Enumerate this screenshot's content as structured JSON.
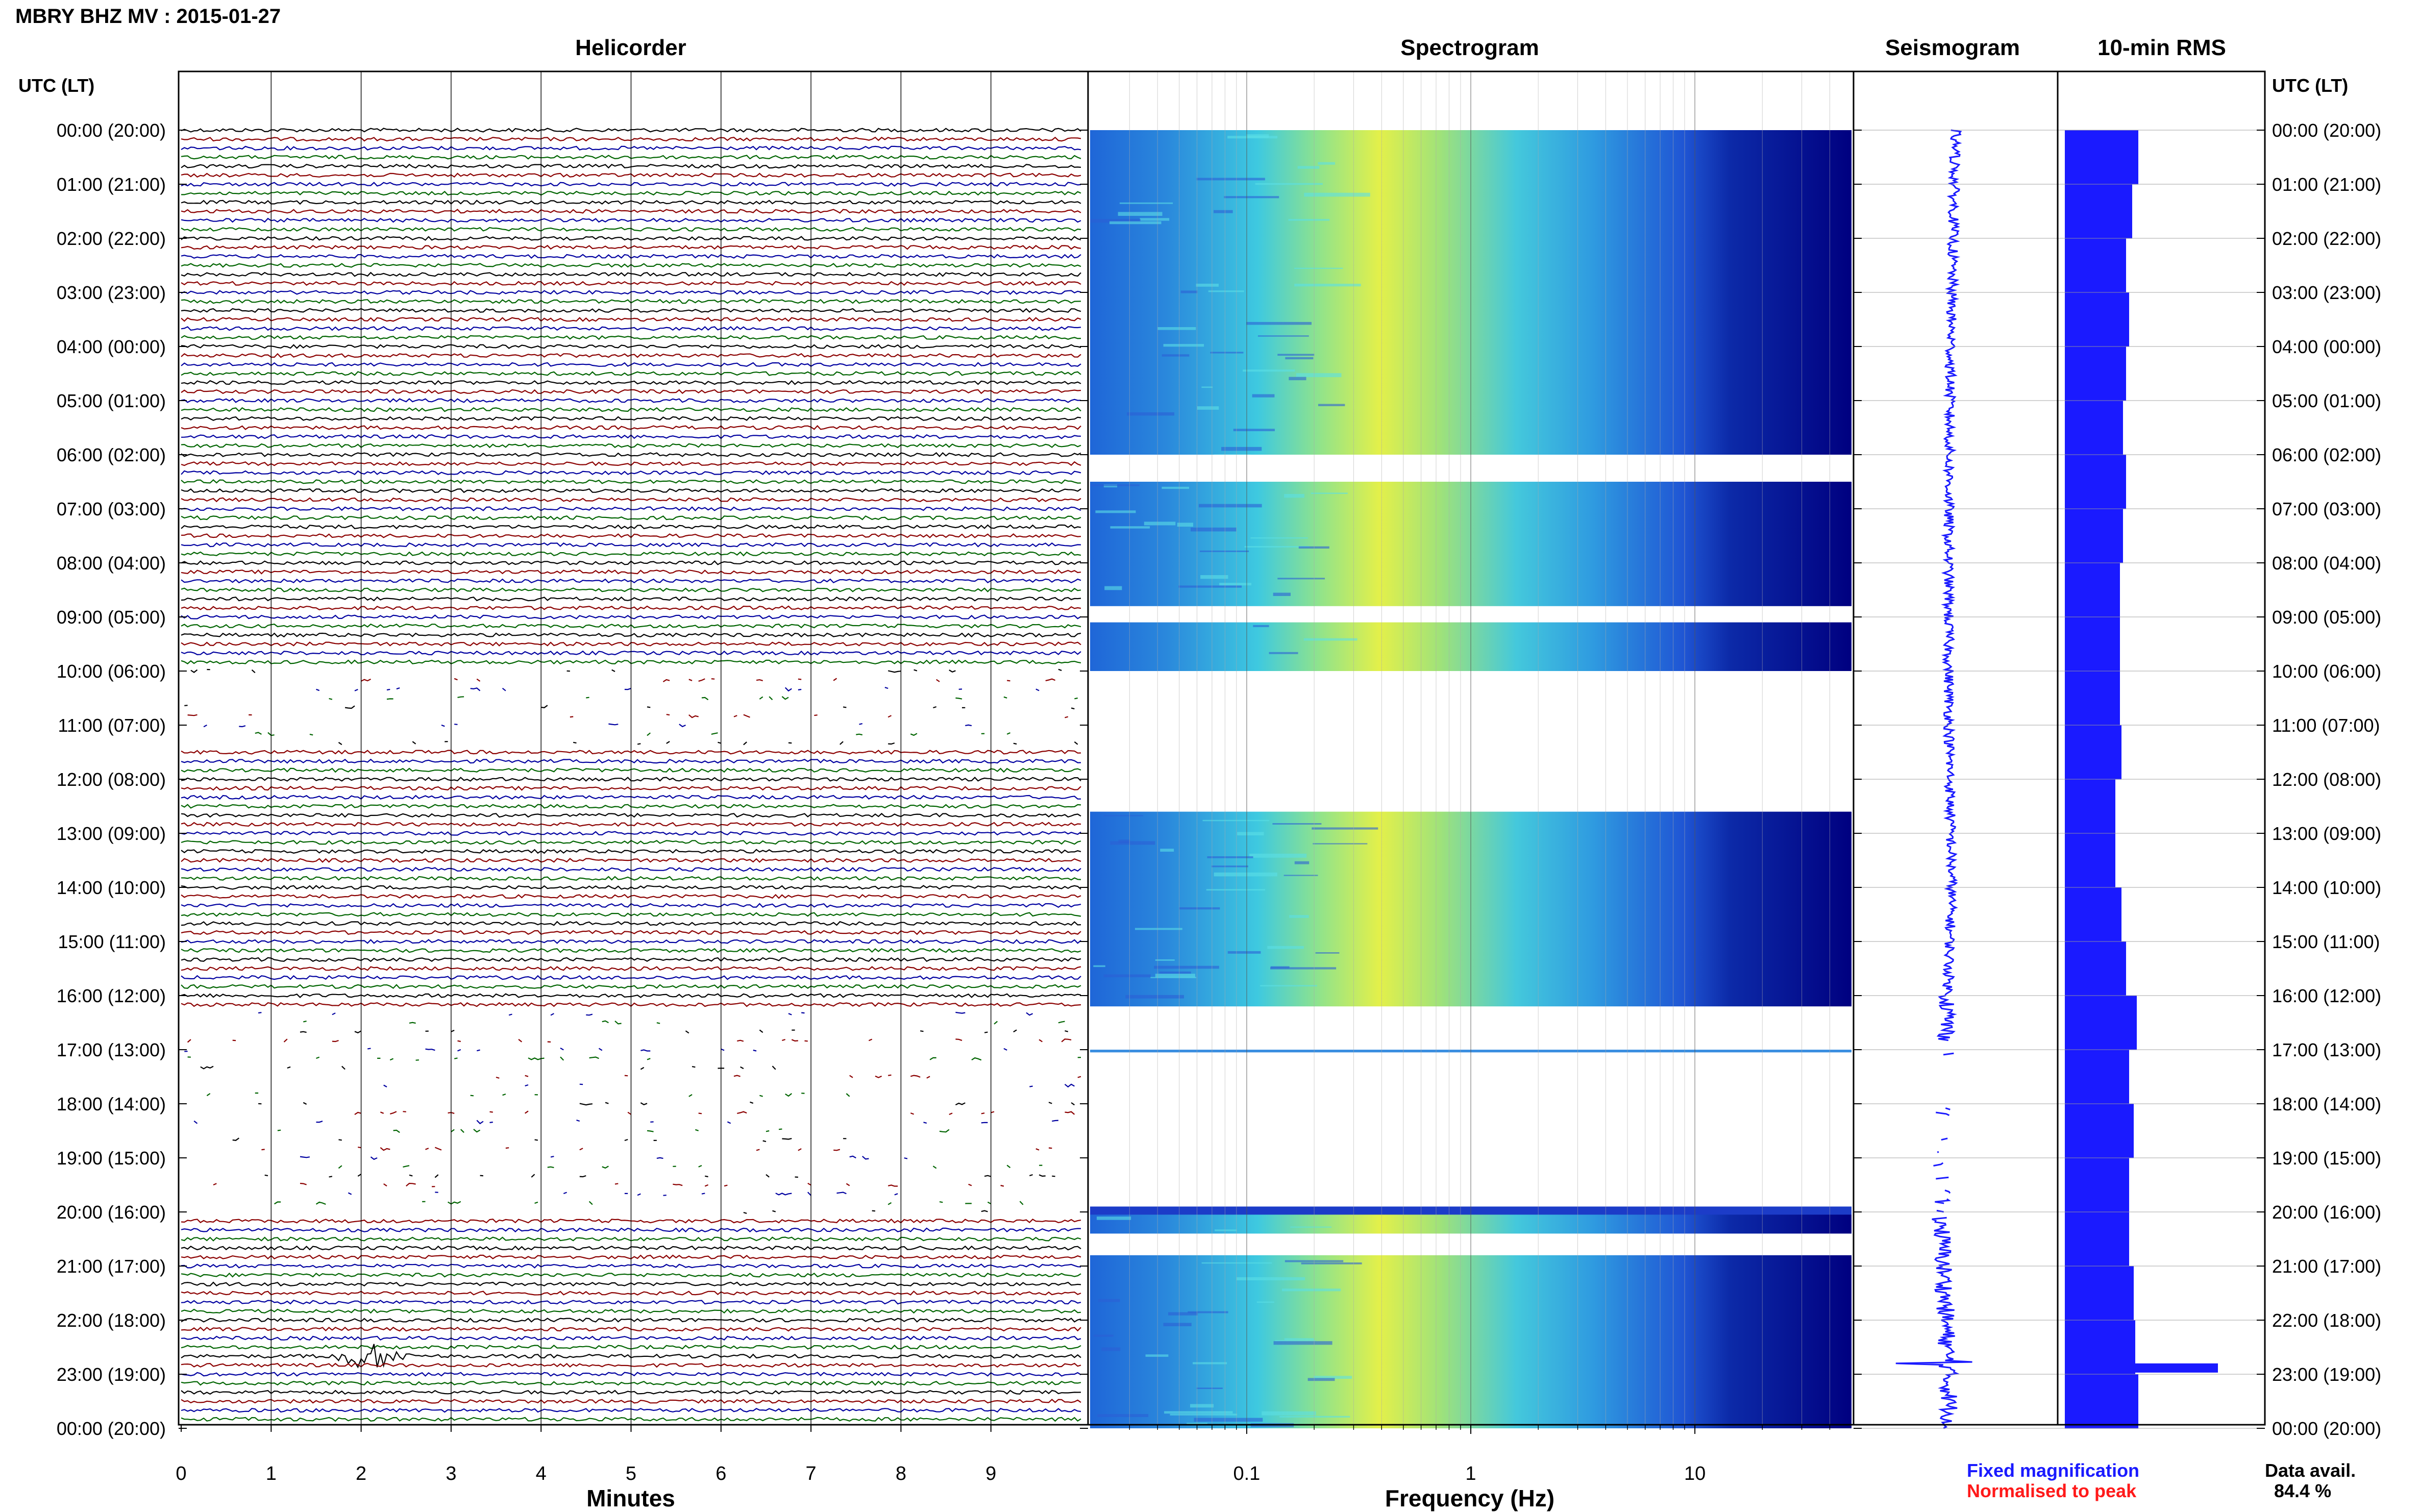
{
  "page": {
    "title": "MBRY BHZ MV : 2015-01-27",
    "utc_label": "UTC (LT)",
    "data_avail_label": "Data avail.",
    "data_avail_value": "84.4 %",
    "fixed_magnification": "Fixed magnification",
    "normalised_to_peak": "Normalised to peak",
    "colors": {
      "fixed_magnification": "#1a1aff",
      "normalised_to_peak": "#ff1a1a",
      "trace_cycle": [
        "#000000",
        "#8b0000",
        "#0000a0",
        "#006400"
      ],
      "spectrogram_dark": "#000080",
      "rms_bar": "#1a1aff"
    }
  },
  "chart_data": [
    {
      "type": "line",
      "title": "Helicorder",
      "xlabel": "Minutes",
      "ylabel": "",
      "xlim": [
        0,
        10
      ],
      "x_ticks": [
        "0",
        "1",
        "2",
        "3",
        "4",
        "5",
        "6",
        "7",
        "8",
        "9"
      ],
      "y_ticks": [
        "00:00 (20:00)",
        "01:00 (21:00)",
        "02:00 (22:00)",
        "03:00 (23:00)",
        "04:00 (00:00)",
        "05:00 (01:00)",
        "06:00 (02:00)",
        "07:00 (03:00)",
        "08:00 (04:00)",
        "09:00 (05:00)",
        "10:00 (06:00)",
        "11:00 (07:00)",
        "12:00 (08:00)",
        "13:00 (09:00)",
        "14:00 (10:00)",
        "15:00 (11:00)",
        "16:00 (12:00)",
        "17:00 (13:00)",
        "18:00 (14:00)",
        "19:00 (15:00)",
        "20:00 (16:00)",
        "21:00 (17:00)",
        "22:00 (18:00)",
        "23:00 (19:00)",
        "00:00 (20:00)"
      ],
      "row_minutes": 10,
      "rows": 144,
      "gap_intervals_utc_hours": [
        [
          10.0,
          11.5
        ],
        [
          16.3,
          20.1
        ]
      ],
      "events": [
        {
          "utc_hour": 22.67,
          "minute_start": 1.6,
          "minute_end": 2.6
        }
      ]
    },
    {
      "type": "heatmap",
      "title": "Spectrogram",
      "xlabel": "Frequency (Hz)",
      "ylabel": "",
      "x_scale": "log",
      "xlim": [
        0.02,
        50
      ],
      "x_ticks": [
        "0.1",
        "1",
        "10"
      ],
      "gap_intervals_utc_hours": [
        [
          6.0,
          6.5
        ],
        [
          8.8,
          9.1
        ],
        [
          10.0,
          12.6
        ],
        [
          16.2,
          20.0
        ],
        [
          20.4,
          20.8
        ]
      ],
      "peak_band_hz": [
        0.2,
        0.6
      ]
    },
    {
      "type": "line",
      "title": "Seismogram",
      "xlabel": "",
      "ylabel": "",
      "spike_utc_hour": 22.8
    },
    {
      "type": "bar",
      "title": "10-min RMS",
      "xlabel": "",
      "ylabel": "",
      "hours": [
        0,
        1,
        2,
        3,
        4,
        5,
        6,
        7,
        8,
        9,
        10,
        11,
        12,
        13,
        14,
        15,
        16,
        17,
        18,
        19,
        20,
        21,
        22,
        23
      ],
      "values": [
        0.48,
        0.44,
        0.4,
        0.42,
        0.4,
        0.38,
        0.4,
        0.38,
        0.36,
        0.36,
        0.36,
        0.37,
        0.33,
        0.33,
        0.37,
        0.4,
        0.47,
        0.42,
        0.45,
        0.42,
        0.42,
        0.45,
        0.46,
        0.48
      ],
      "peak": {
        "utc_hour": 22.8,
        "value": 1.0
      }
    }
  ]
}
